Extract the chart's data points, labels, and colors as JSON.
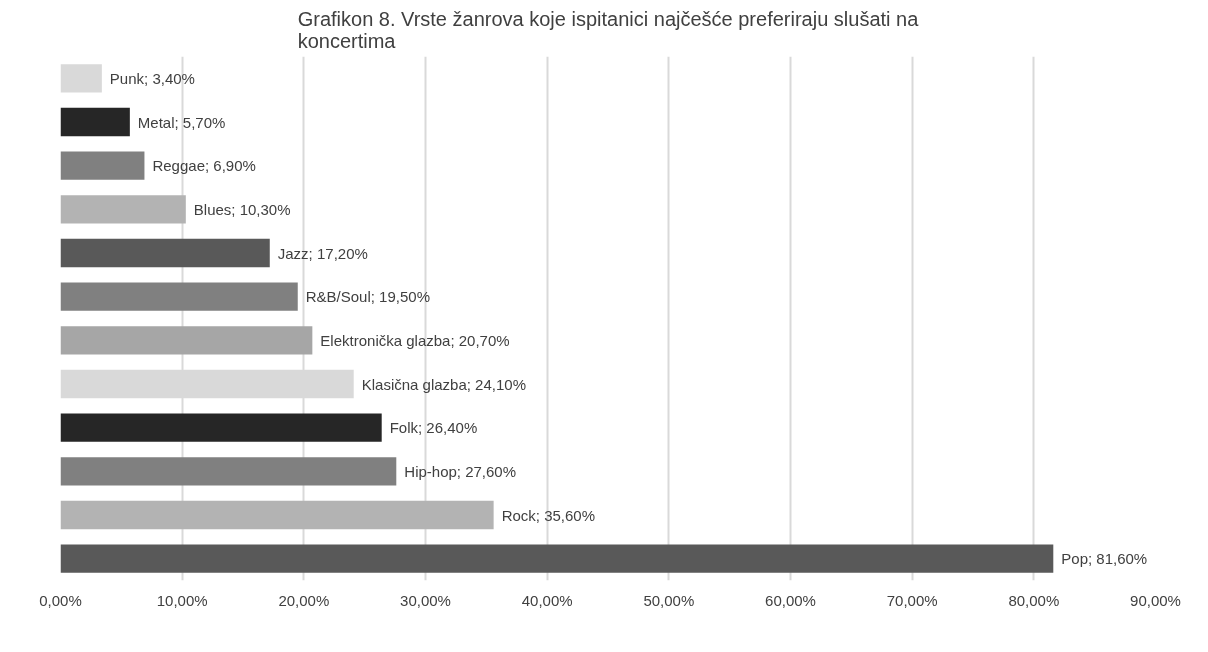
{
  "chart_data": {
    "type": "bar",
    "orientation": "horizontal",
    "title": "Grafikon 8. Vrste žanrova koje ispitanici najčešće preferiraju slušati na koncertima",
    "categories": [
      null,
      null,
      null,
      null,
      null,
      null,
      null,
      null,
      null,
      null,
      null,
      null
    ],
    "values": [
      3.4,
      5.7,
      6.9,
      10.3,
      17.2,
      19.5,
      20.7,
      24.1,
      26.4,
      27.6,
      35.6,
      81.6
    ],
    "colors": [
      "#d9d9d9",
      "#262626",
      "#808080",
      "#b3b3b3",
      "#595959",
      "#808080",
      "#a6a6a6",
      "#d9d9d9",
      "#262626",
      "#808080",
      "#b3b3b3",
      "#595959"
    ],
    "value_labels": [
      "Punk; 3,40%",
      "Metal; 5,70%",
      "Reggae; 6,90%",
      "Blues; 10,30%",
      "Jazz; 17,20%",
      "R&B/Soul; 19,50%",
      "Elektronička glazba; 20,70%",
      "Klasična glazba; 24,10%",
      "Folk; 26,40%",
      "Hip-hop; 27,60%",
      "Rock; 35,60%",
      "Pop; 81,60%"
    ],
    "xlim": [
      0,
      90
    ],
    "xticks": [
      {
        "value": 0,
        "label": "0,00%"
      },
      {
        "value": 10,
        "label": "10,00%"
      },
      {
        "value": 20,
        "label": "20,00%"
      },
      {
        "value": 30,
        "label": "30,00%"
      },
      {
        "value": 40,
        "label": "40,00%"
      },
      {
        "value": 50,
        "label": "50,00%"
      },
      {
        "value": 60,
        "label": "60,00%"
      },
      {
        "value": 70,
        "label": "70,00%"
      },
      {
        "value": 80,
        "label": "80,00%"
      },
      {
        "value": 90,
        "label": "90,00%"
      }
    ],
    "grid": "x",
    "tick_labels": "x"
  }
}
